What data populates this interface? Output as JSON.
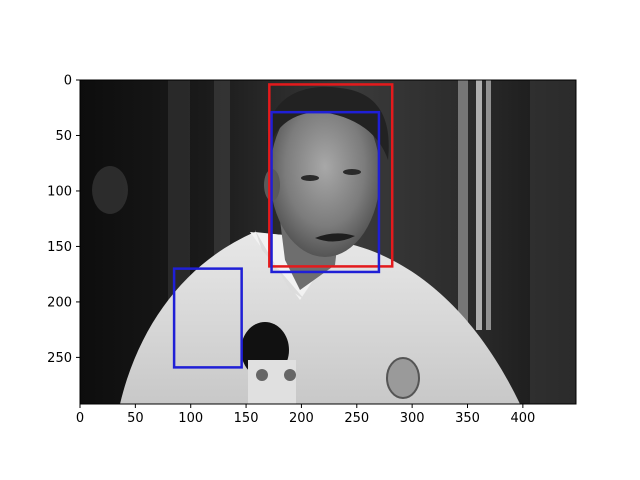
{
  "image": {
    "description_icon": "grayscale-photo",
    "width_units": 448,
    "height_units": 292
  },
  "axes": {
    "x_range": [
      0,
      448
    ],
    "y_range": [
      0,
      292
    ],
    "y_inverted": true,
    "x_ticks": [
      "0",
      "50",
      "100",
      "150",
      "200",
      "250",
      "300",
      "350",
      "400"
    ],
    "y_ticks": [
      "0",
      "50",
      "100",
      "150",
      "200",
      "250"
    ]
  },
  "chart_data": {
    "type": "scatter",
    "x_ticks": [
      0,
      50,
      100,
      150,
      200,
      250,
      300,
      350,
      400
    ],
    "y_ticks": [
      0,
      50,
      100,
      150,
      200,
      250
    ],
    "xlim": [
      0,
      448
    ],
    "ylim": [
      292,
      0
    ],
    "grid": false,
    "boxes": [
      {
        "color": "#e41a1c",
        "x0": 171,
        "y0": 4,
        "x1": 282,
        "y1": 168
      },
      {
        "color": "#1f1fd6",
        "x0": 173,
        "y0": 29,
        "x1": 270,
        "y1": 173
      },
      {
        "color": "#1f1fd6",
        "x0": 85,
        "y0": 170,
        "x1": 146,
        "y1": 259
      }
    ]
  },
  "colors": {
    "red_box": "#e41a1c",
    "blue_box": "#1f1fd6"
  }
}
